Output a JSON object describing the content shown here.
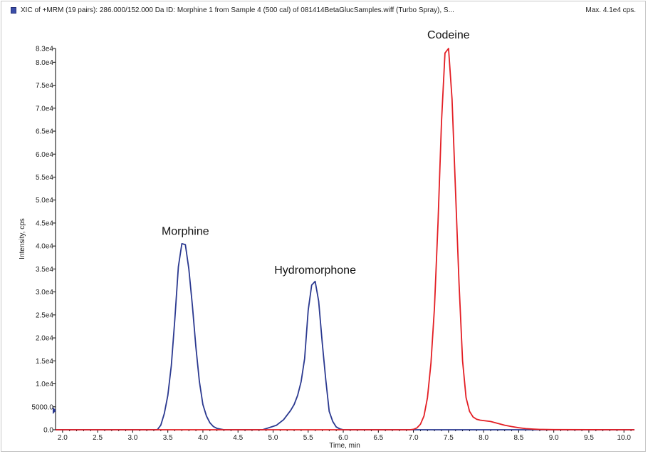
{
  "header": {
    "title": "XIC of +MRM (19 pairs): 286.000/152.000 Da ID: Morphine 1 from Sample 4 (500 cal) of 081414BetaGlucSamples.wiff (Turbo Spray), S...",
    "max_label": "Max. 4.1e4 cps."
  },
  "chart_data": {
    "type": "line",
    "title": "",
    "xlabel": "Time, min",
    "ylabel": "Intensity, cps",
    "xlim": [
      1.9,
      10.15
    ],
    "ylim": [
      0,
      83000
    ],
    "x_ticks": [
      2.0,
      2.5,
      3.0,
      3.5,
      4.0,
      4.5,
      5.0,
      5.5,
      6.0,
      6.5,
      7.0,
      7.5,
      8.0,
      8.5,
      9.0,
      9.5,
      10.0
    ],
    "x_tick_labels": [
      "2.0",
      "2.5",
      "3.0",
      "3.5",
      "4.0",
      "4.5",
      "5.0",
      "5.5",
      "6.0",
      "6.5",
      "7.0",
      "7.5",
      "8.0",
      "8.5",
      "9.0",
      "9.5",
      "10.0"
    ],
    "y_ticks": [
      0,
      5000,
      10000,
      15000,
      20000,
      25000,
      30000,
      35000,
      40000,
      45000,
      50000,
      55000,
      60000,
      65000,
      70000,
      75000,
      80000,
      83000
    ],
    "y_tick_labels": [
      "0.0",
      "5000.0",
      "1.0e4",
      "1.5e4",
      "2.0e4",
      "2.5e4",
      "3.0e4",
      "3.5e4",
      "4.0e4",
      "4.5e4",
      "5.0e4",
      "5.5e4",
      "6.0e4",
      "6.5e4",
      "7.0e4",
      "7.5e4",
      "8.0e4",
      "8.3e4"
    ],
    "grid": false,
    "series": [
      {
        "color": "#2b3990",
        "x": [
          1.9,
          3.35,
          3.4,
          3.45,
          3.5,
          3.55,
          3.6,
          3.65,
          3.7,
          3.75,
          3.8,
          3.85,
          3.9,
          3.95,
          4.0,
          4.05,
          4.1,
          4.15,
          4.2,
          4.3,
          4.35,
          4.5,
          4.85,
          4.95,
          5.05,
          5.15,
          5.25,
          5.3,
          5.35,
          5.4,
          5.45,
          5.5,
          5.55,
          5.6,
          5.65,
          5.7,
          5.75,
          5.8,
          5.85,
          5.9,
          5.95,
          6.0,
          10.15
        ],
        "y": [
          0,
          0,
          1000,
          3500,
          7500,
          14000,
          24000,
          35500,
          40500,
          40300,
          35000,
          27000,
          18000,
          10500,
          5500,
          3000,
          1500,
          700,
          300,
          0,
          0,
          0,
          0,
          500,
          1000,
          2200,
          4200,
          5500,
          7500,
          10500,
          15500,
          26000,
          31500,
          32300,
          28000,
          19000,
          11000,
          4000,
          1800,
          600,
          200,
          0,
          0
        ]
      },
      {
        "color": "#e31e24",
        "x": [
          1.9,
          6.95,
          7.0,
          7.05,
          7.1,
          7.15,
          7.2,
          7.25,
          7.3,
          7.35,
          7.4,
          7.45,
          7.5,
          7.55,
          7.6,
          7.65,
          7.7,
          7.75,
          7.8,
          7.85,
          7.9,
          7.95,
          8.0,
          8.1,
          8.2,
          8.3,
          8.4,
          8.5,
          8.6,
          8.7,
          8.8,
          9.0,
          9.5,
          10.15
        ],
        "y": [
          0,
          0,
          100,
          400,
          1200,
          3000,
          7000,
          14500,
          26500,
          45000,
          67000,
          82000,
          83000,
          72000,
          52000,
          32000,
          15000,
          7000,
          4000,
          2800,
          2300,
          2100,
          2000,
          1800,
          1400,
          1000,
          700,
          450,
          250,
          150,
          80,
          30,
          10,
          0
        ]
      }
    ],
    "annotations": [
      {
        "text": "Morphine",
        "x": 3.75,
        "y": 42400
      },
      {
        "text": "Hydromorphone",
        "x": 5.6,
        "y": 34000
      },
      {
        "text": "Codeine",
        "x": 7.5,
        "y": 85200
      }
    ]
  }
}
